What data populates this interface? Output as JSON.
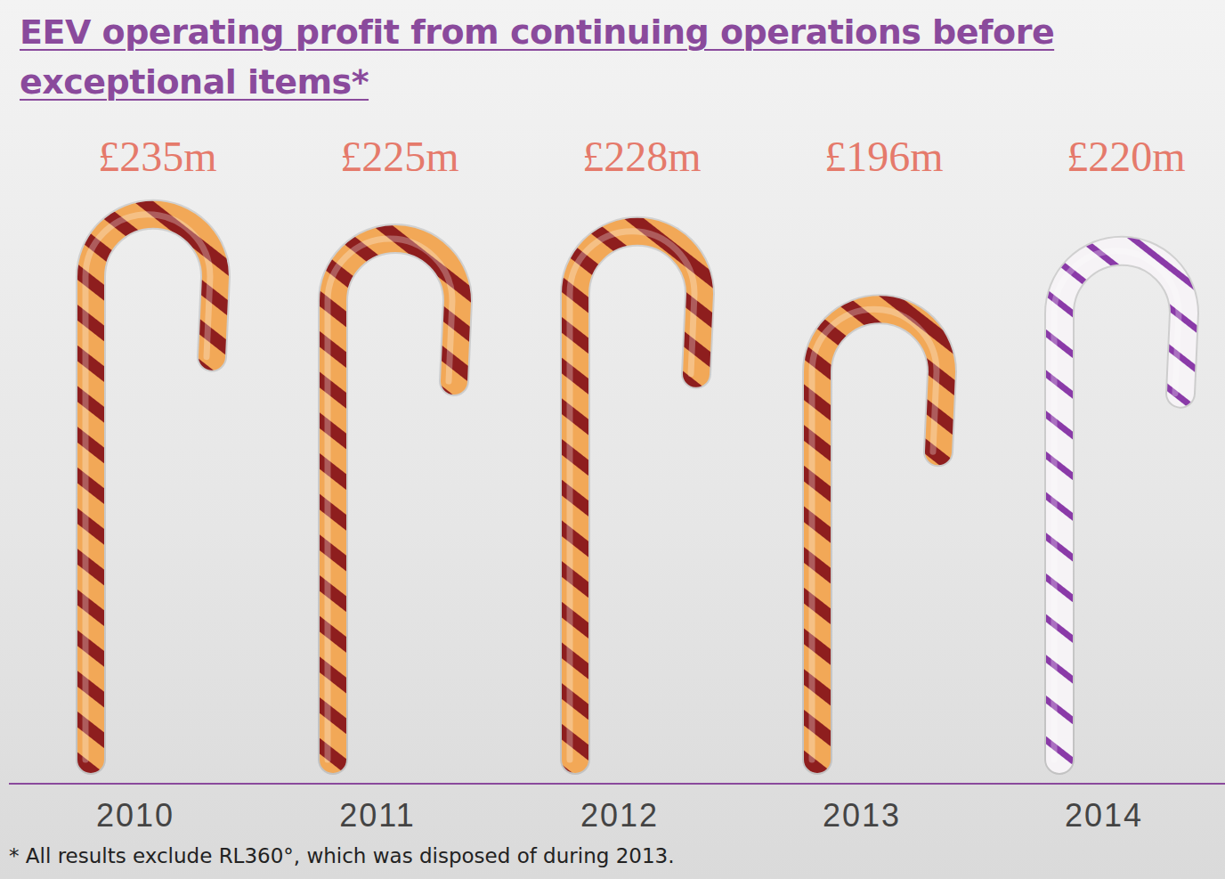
{
  "chart_data": {
    "type": "bar",
    "title": "EEV operating profit from continuing operations before exceptional items*",
    "footnote": "* All results exclude RL360°, which was disposed of during 2013.",
    "categories": [
      "2010",
      "2011",
      "2012",
      "2013",
      "2014"
    ],
    "values": [
      235,
      225,
      228,
      196,
      220
    ],
    "value_labels": [
      "£235m",
      "£225m",
      "£228m",
      "£196m",
      "£220m"
    ],
    "data_labels": true,
    "colors": [
      "#8e1e1e",
      "#8e1e1e",
      "#8e1e1e",
      "#8e1e1e",
      "#8a3aa8"
    ],
    "ylim": [
      0,
      240
    ],
    "tick_labels": "x",
    "grid": false
  }
}
